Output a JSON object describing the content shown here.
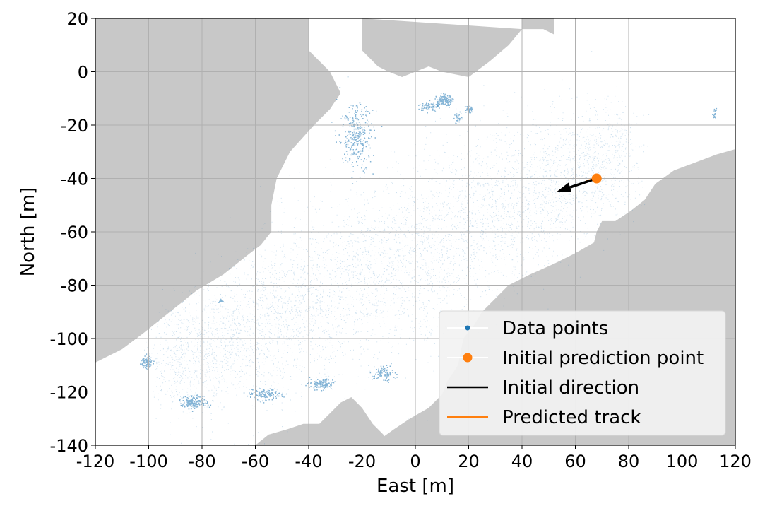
{
  "chart_data": {
    "type": "scatter",
    "xlabel": "East [m]",
    "ylabel": "North [m]",
    "xlim": [
      -120,
      120
    ],
    "ylim": [
      -140,
      20
    ],
    "xticks": [
      -120,
      -100,
      -80,
      -60,
      -40,
      -20,
      0,
      20,
      40,
      60,
      80,
      100,
      120
    ],
    "yticks": [
      20,
      0,
      -20,
      -40,
      -60,
      -80,
      -100,
      -120,
      -140
    ],
    "grid": true,
    "legend_position": "bottom-right",
    "colors": {
      "data_points": "#1f77b4",
      "initial_point": "#ff7f0e",
      "direction": "#000000",
      "predicted_track": "#ff7f0e",
      "land": "#c8c8c8"
    },
    "land_regions": [
      [
        [
          -120,
          20
        ],
        [
          -40,
          20
        ],
        [
          -40,
          8
        ],
        [
          -32,
          0
        ],
        [
          -28,
          -8
        ],
        [
          -32,
          -14
        ],
        [
          -38,
          -20
        ],
        [
          -47,
          -30
        ],
        [
          -52,
          -40
        ],
        [
          -54,
          -50
        ],
        [
          -54,
          -60
        ],
        [
          -58,
          -65
        ],
        [
          -62,
          -68
        ],
        [
          -72,
          -76
        ],
        [
          -82,
          -82
        ],
        [
          -92,
          -90
        ],
        [
          -102,
          -98
        ],
        [
          -110,
          -104
        ],
        [
          -120,
          -109
        ]
      ],
      [
        [
          -20,
          20
        ],
        [
          40,
          20
        ],
        [
          40,
          16
        ],
        [
          48,
          16
        ],
        [
          52,
          14
        ],
        [
          52,
          20
        ],
        [
          -20,
          20
        ]
      ],
      [
        [
          -20,
          20
        ],
        [
          -20,
          8
        ],
        [
          -14,
          2
        ],
        [
          -10,
          0
        ],
        [
          -5,
          -2
        ],
        [
          0,
          0
        ],
        [
          5,
          2
        ],
        [
          10,
          0
        ],
        [
          20,
          -2
        ],
        [
          28,
          4
        ],
        [
          35,
          10
        ],
        [
          40,
          16
        ],
        [
          -20,
          20
        ]
      ],
      [
        [
          120,
          -29
        ],
        [
          113,
          -31
        ],
        [
          105,
          -34
        ],
        [
          97,
          -37
        ],
        [
          90,
          -42
        ],
        [
          86,
          -48
        ],
        [
          81,
          -52
        ],
        [
          75,
          -56
        ],
        [
          70,
          -56
        ],
        [
          68,
          -60
        ],
        [
          67,
          -64
        ],
        [
          60,
          -68
        ],
        [
          52,
          -72
        ],
        [
          43,
          -76
        ],
        [
          35,
          -80
        ],
        [
          30,
          -85
        ],
        [
          25,
          -90
        ],
        [
          22,
          -95
        ],
        [
          18,
          -100
        ],
        [
          16,
          -110
        ],
        [
          12,
          -116
        ],
        [
          10,
          -121
        ],
        [
          5,
          -126
        ],
        [
          -2,
          -130
        ],
        [
          -8,
          -134
        ],
        [
          -15,
          -139
        ],
        [
          -20,
          -140
        ],
        [
          120,
          -140
        ]
      ],
      [
        [
          -60,
          -140
        ],
        [
          -55,
          -136
        ],
        [
          -48,
          -134
        ],
        [
          -42,
          -132
        ],
        [
          -36,
          -132
        ],
        [
          -32,
          -128
        ],
        [
          -28,
          -124
        ],
        [
          -24,
          -122
        ],
        [
          -20,
          -126
        ],
        [
          -16,
          -132
        ],
        [
          -12,
          -136
        ],
        [
          -10,
          -140
        ]
      ]
    ],
    "clusters": [
      {
        "cx": -22,
        "cy": -25,
        "sx": 3,
        "sy": 6,
        "n": 300
      },
      {
        "cx": 11,
        "cy": -11,
        "sx": 1.5,
        "sy": 1,
        "n": 150
      },
      {
        "cx": 5,
        "cy": -13,
        "sx": 2,
        "sy": 0.8,
        "n": 80
      },
      {
        "cx": 20,
        "cy": -14,
        "sx": 1,
        "sy": 0.6,
        "n": 40
      },
      {
        "cx": 16,
        "cy": -17,
        "sx": 0.8,
        "sy": 1.2,
        "n": 30
      },
      {
        "cx": -101,
        "cy": -109,
        "sx": 1,
        "sy": 1,
        "n": 120
      },
      {
        "cx": -83,
        "cy": -124,
        "sx": 2.5,
        "sy": 1.2,
        "n": 180
      },
      {
        "cx": -57,
        "cy": -121,
        "sx": 3,
        "sy": 1,
        "n": 150
      },
      {
        "cx": -35,
        "cy": -117,
        "sx": 2,
        "sy": 1,
        "n": 130
      },
      {
        "cx": -12,
        "cy": -113,
        "sx": 2,
        "sy": 1.5,
        "n": 100
      },
      {
        "cx": -73,
        "cy": -86,
        "sx": 0.4,
        "sy": 0.4,
        "n": 15
      },
      {
        "cx": 112,
        "cy": -16,
        "sx": 0.4,
        "sy": 1,
        "n": 20
      }
    ],
    "initial_point": {
      "x": 68,
      "y": -40
    },
    "initial_direction": {
      "x": 53,
      "y": -45
    },
    "predicted_track": [
      [
        68,
        -40
      ],
      [
        64,
        -41
      ]
    ],
    "legend": [
      {
        "label": "Data points",
        "kind": "dot"
      },
      {
        "label": "Initial prediction point",
        "kind": "circle"
      },
      {
        "label": "Initial direction",
        "kind": "black-line"
      },
      {
        "label": "Predicted track",
        "kind": "orange-line"
      }
    ]
  }
}
